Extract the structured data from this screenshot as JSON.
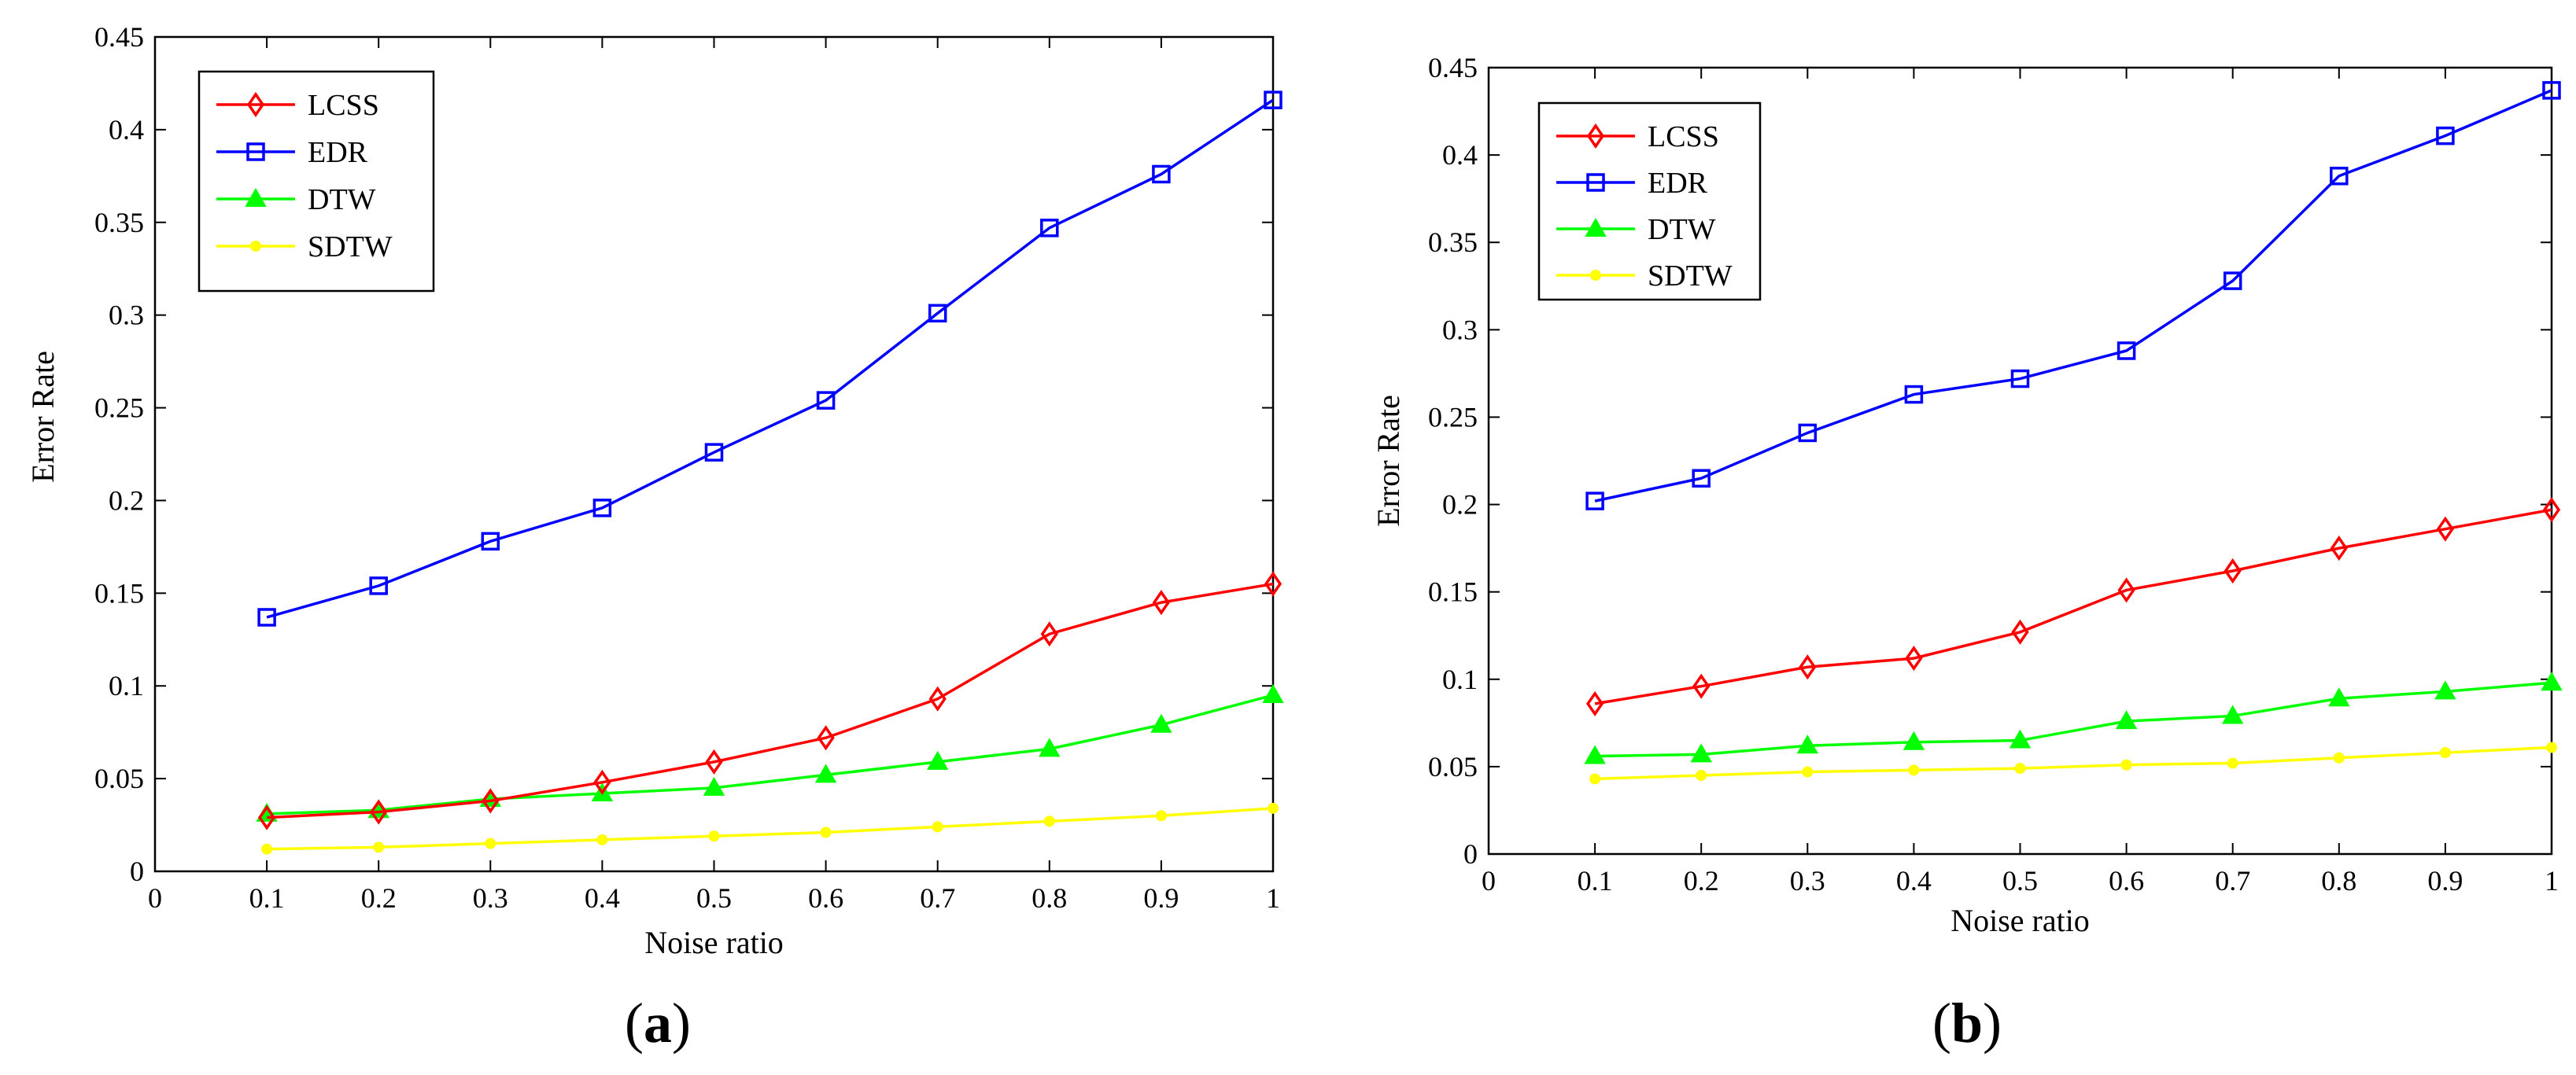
{
  "figure": {
    "label_a": "a",
    "label_b": "b"
  },
  "chart_data": [
    {
      "id": "a",
      "type": "line",
      "panel_label": "a",
      "xlabel": "Noise ratio",
      "ylabel": "Error Rate",
      "xlim": [
        0,
        1
      ],
      "ylim": [
        0,
        0.45
      ],
      "xticks": [
        0,
        0.1,
        0.2,
        0.3,
        0.4,
        0.5,
        0.6,
        0.7,
        0.8,
        0.9,
        1
      ],
      "xtick_labels": [
        "0",
        "0.1",
        "0.2",
        "0.3",
        "0.4",
        "0.5",
        "0.6",
        "0.7",
        "0.8",
        "0.9",
        "1"
      ],
      "yticks": [
        0,
        0.05,
        0.1,
        0.15,
        0.2,
        0.25,
        0.3,
        0.35,
        0.4,
        0.45
      ],
      "ytick_labels": [
        "0",
        "0.05",
        "0.1",
        "0.15",
        "0.2",
        "0.25",
        "0.3",
        "0.35",
        "0.4",
        "0.45"
      ],
      "legend_position": "top-left",
      "x": [
        0.1,
        0.2,
        0.3,
        0.4,
        0.5,
        0.6,
        0.7,
        0.8,
        0.9,
        1
      ],
      "series": [
        {
          "name": "LCSS",
          "color": "#ff0000",
          "marker": "diamond",
          "values": [
            0.029,
            0.032,
            0.038,
            0.048,
            0.059,
            0.072,
            0.093,
            0.128,
            0.145,
            0.155
          ]
        },
        {
          "name": "EDR",
          "color": "#0000ff",
          "marker": "square",
          "values": [
            0.137,
            0.154,
            0.178,
            0.196,
            0.226,
            0.254,
            0.301,
            0.347,
            0.376,
            0.416
          ]
        },
        {
          "name": "DTW",
          "color": "#00ff00",
          "marker": "triangle",
          "values": [
            0.031,
            0.033,
            0.039,
            0.042,
            0.045,
            0.052,
            0.059,
            0.066,
            0.079,
            0.095
          ]
        },
        {
          "name": "SDTW",
          "color": "#ffff00",
          "marker": "star",
          "values": [
            0.012,
            0.013,
            0.015,
            0.017,
            0.019,
            0.021,
            0.024,
            0.027,
            0.03,
            0.034
          ]
        }
      ]
    },
    {
      "id": "b",
      "type": "line",
      "panel_label": "b",
      "xlabel": "Noise ratio",
      "ylabel": "Error Rate",
      "xlim": [
        0,
        1
      ],
      "ylim": [
        0,
        0.45
      ],
      "xticks": [
        0,
        0.1,
        0.2,
        0.3,
        0.4,
        0.5,
        0.6,
        0.7,
        0.8,
        0.9,
        1
      ],
      "xtick_labels": [
        "0",
        "0.1",
        "0.2",
        "0.3",
        "0.4",
        "0.5",
        "0.6",
        "0.7",
        "0.8",
        "0.9",
        "1"
      ],
      "yticks": [
        0,
        0.05,
        0.1,
        0.15,
        0.2,
        0.25,
        0.3,
        0.35,
        0.4,
        0.45
      ],
      "ytick_labels": [
        "0",
        "0.05",
        "0.1",
        "0.15",
        "0.2",
        "0.25",
        "0.3",
        "0.35",
        "0.4",
        "0.45"
      ],
      "legend_position": "top-left",
      "x": [
        0.1,
        0.2,
        0.3,
        0.4,
        0.5,
        0.6,
        0.7,
        0.8,
        0.9,
        1
      ],
      "series": [
        {
          "name": "LCSS",
          "color": "#ff0000",
          "marker": "diamond",
          "values": [
            0.086,
            0.096,
            0.107,
            0.112,
            0.127,
            0.151,
            0.162,
            0.175,
            0.186,
            0.197
          ]
        },
        {
          "name": "EDR",
          "color": "#0000ff",
          "marker": "square",
          "values": [
            0.202,
            0.215,
            0.241,
            0.263,
            0.272,
            0.288,
            0.328,
            0.388,
            0.411,
            0.437
          ]
        },
        {
          "name": "DTW",
          "color": "#00ff00",
          "marker": "triangle",
          "values": [
            0.056,
            0.057,
            0.062,
            0.064,
            0.065,
            0.076,
            0.079,
            0.089,
            0.093,
            0.098
          ]
        },
        {
          "name": "SDTW",
          "color": "#ffff00",
          "marker": "star",
          "values": [
            0.043,
            0.045,
            0.047,
            0.048,
            0.049,
            0.051,
            0.052,
            0.055,
            0.058,
            0.061
          ]
        }
      ]
    }
  ]
}
